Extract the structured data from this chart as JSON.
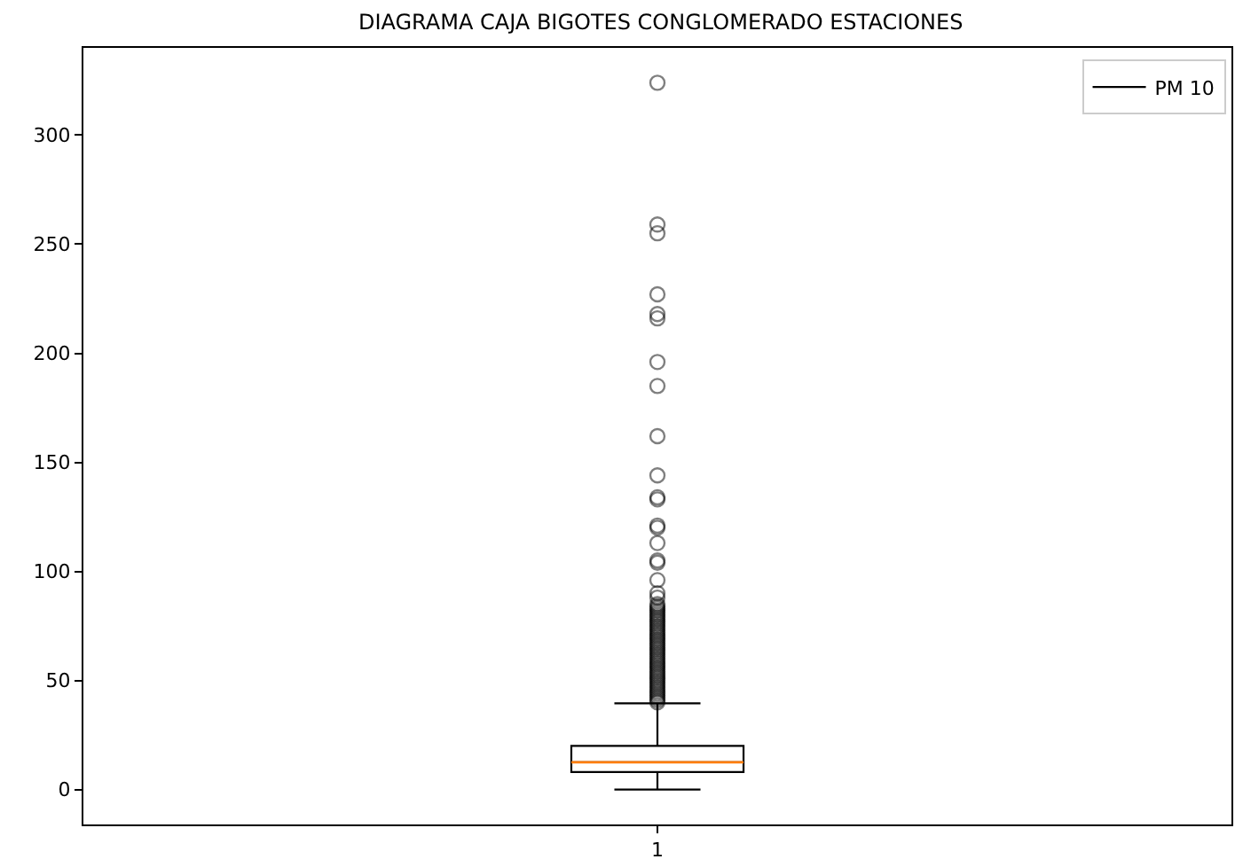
{
  "chart_data": {
    "type": "box",
    "title": "DIAGRAMA CAJA BIGOTES CONGLOMERADO ESTACIONES",
    "categories": [
      "1"
    ],
    "series": [
      {
        "name": "PM 10",
        "color": "#000000",
        "boxes": [
          {
            "low": 0,
            "q1": 8,
            "median": 12.5,
            "q3": 20,
            "high": 39.5,
            "outliers": [
              40,
              41,
              42,
              43,
              44,
              45,
              46,
              47,
              48,
              49,
              50,
              51,
              52,
              53,
              54,
              55,
              56,
              57,
              58,
              59,
              60,
              61,
              62,
              63,
              64,
              65,
              66,
              67,
              68,
              69,
              70,
              71,
              72,
              73,
              74,
              75,
              76,
              77,
              78,
              79,
              80,
              81,
              82,
              83,
              84,
              85,
              88,
              90,
              96,
              104,
              105,
              113,
              120,
              121,
              133,
              134,
              144,
              162,
              185,
              196,
              216,
              218,
              227,
              255,
              259,
              324
            ]
          }
        ]
      }
    ],
    "ylim": [
      -16,
      340
    ],
    "yticks": [
      0,
      50,
      100,
      150,
      200,
      250,
      300
    ],
    "legend": "top right",
    "marker": "circle"
  }
}
